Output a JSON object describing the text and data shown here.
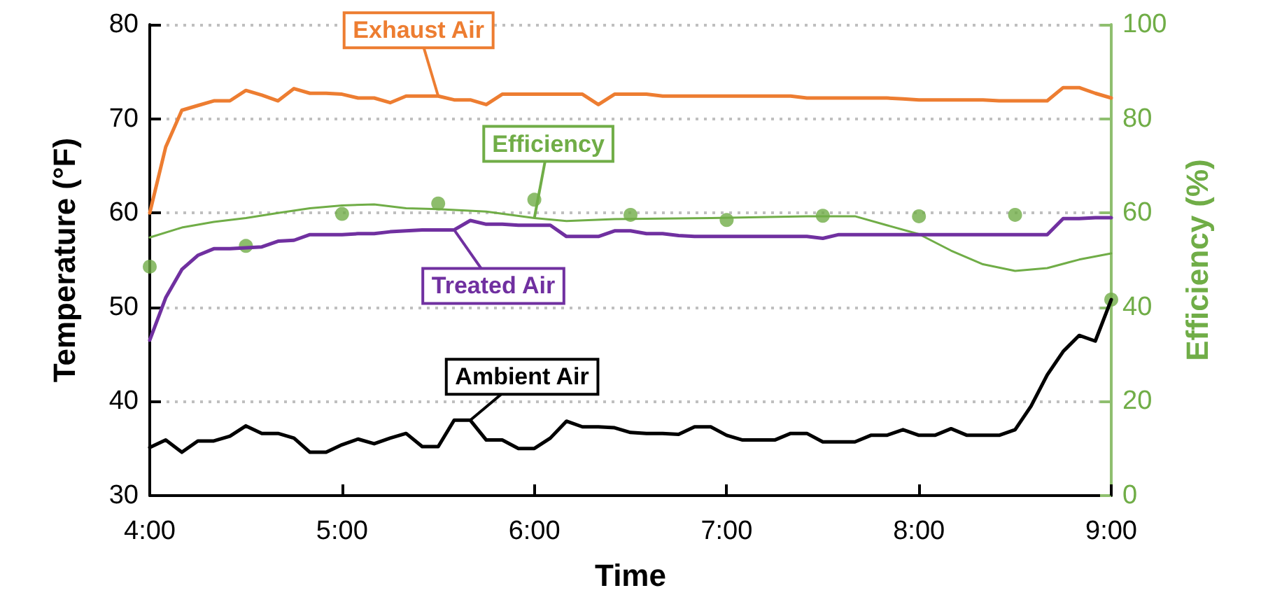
{
  "chart_data": {
    "type": "line",
    "xlabel": "Time",
    "ylabel": "Temperature (°F)",
    "y2label": "Efficiency (%)",
    "x": [
      4,
      4.083,
      4.167,
      4.25,
      4.333,
      4.417,
      4.5,
      4.583,
      4.667,
      4.75,
      4.833,
      4.917,
      5,
      5.083,
      5.167,
      5.25,
      5.333,
      5.417,
      5.5,
      5.583,
      5.667,
      5.75,
      5.833,
      5.917,
      6,
      6.083,
      6.167,
      6.25,
      6.333,
      6.417,
      6.5,
      6.583,
      6.667,
      6.75,
      6.833,
      6.917,
      7,
      7.083,
      7.167,
      7.25,
      7.333,
      7.417,
      7.5,
      7.583,
      7.667,
      7.75,
      7.833,
      7.917,
      8,
      8.083,
      8.167,
      8.25,
      8.333,
      8.417,
      8.5,
      8.583,
      8.667,
      8.75,
      8.833,
      8.917,
      9
    ],
    "series": [
      {
        "name": "Exhaust Air",
        "color": "#ed7d31",
        "values": [
          60.0,
          67.0,
          70.9,
          71.4,
          71.9,
          71.9,
          73.0,
          72.5,
          71.9,
          73.2,
          72.7,
          72.7,
          72.6,
          72.2,
          72.2,
          71.7,
          72.4,
          72.4,
          72.4,
          72.0,
          72.0,
          71.5,
          72.6,
          72.6,
          72.6,
          72.6,
          72.6,
          72.6,
          71.5,
          72.6,
          72.6,
          72.6,
          72.4,
          72.4,
          72.4,
          72.4,
          72.4,
          72.4,
          72.4,
          72.4,
          72.4,
          72.2,
          72.2,
          72.2,
          72.2,
          72.2,
          72.2,
          72.1,
          72.0,
          72.0,
          72.0,
          72.0,
          72.0,
          71.9,
          71.9,
          71.9,
          71.9,
          73.3,
          73.3,
          72.7,
          72.2
        ]
      },
      {
        "name": "Efficiency",
        "color": "#70ad47",
        "axis": "y2",
        "x": [
          4,
          4.167,
          4.333,
          4.5,
          4.667,
          4.833,
          5,
          5.167,
          5.333,
          5.5,
          5.75,
          6,
          6.167,
          6.417,
          6.917,
          7.417,
          7.667,
          7.833,
          8,
          8.167,
          8.333,
          8.5,
          8.667,
          8.833,
          9
        ],
        "values": [
          54.8,
          56.9,
          58.1,
          58.9,
          60.0,
          61.0,
          61.6,
          61.8,
          61.0,
          60.8,
          60.3,
          58.9,
          58.3,
          58.7,
          58.9,
          59.3,
          59.3,
          57.4,
          55.5,
          52.0,
          49.1,
          47.7,
          48.3,
          50.1,
          51.4
        ]
      },
      {
        "type": "scatter",
        "marker": "circle",
        "color": "#70ad47",
        "axis": "y2",
        "x": [
          4,
          4.5,
          5,
          5.5,
          6,
          6.5,
          7,
          7.5,
          8,
          8.5,
          9
        ],
        "values": [
          48.6,
          53.0,
          59.8,
          62.0,
          62.8,
          59.6,
          58.5,
          59.4,
          59.3,
          59.6,
          41.6
        ]
      },
      {
        "name": "Treated Air",
        "color": "#7030a0",
        "values": [
          46.5,
          51.0,
          54.0,
          55.5,
          56.2,
          56.2,
          56.3,
          56.4,
          57.0,
          57.1,
          57.7,
          57.7,
          57.7,
          57.8,
          57.8,
          58.0,
          58.1,
          58.2,
          58.2,
          58.2,
          59.2,
          58.8,
          58.8,
          58.7,
          58.7,
          58.7,
          57.5,
          57.5,
          57.5,
          58.1,
          58.1,
          57.8,
          57.8,
          57.6,
          57.5,
          57.5,
          57.5,
          57.5,
          57.5,
          57.5,
          57.5,
          57.5,
          57.3,
          57.7,
          57.7,
          57.7,
          57.7,
          57.7,
          57.7,
          57.7,
          57.7,
          57.7,
          57.7,
          57.7,
          57.7,
          57.7,
          57.7,
          59.4,
          59.4,
          59.5,
          59.5
        ]
      },
      {
        "name": "Ambient Air",
        "color": "#000000",
        "values": [
          35.1,
          35.9,
          34.6,
          35.8,
          35.8,
          36.3,
          37.4,
          36.6,
          36.6,
          36.1,
          34.6,
          34.6,
          35.4,
          36.0,
          35.5,
          36.1,
          36.6,
          35.2,
          35.2,
          38.0,
          38.0,
          35.9,
          35.9,
          35.0,
          35.0,
          36.1,
          37.9,
          37.3,
          37.3,
          37.2,
          36.7,
          36.6,
          36.6,
          36.5,
          37.3,
          37.3,
          36.4,
          35.9,
          35.9,
          35.9,
          36.6,
          36.6,
          35.7,
          35.7,
          35.7,
          36.4,
          36.4,
          37.0,
          36.4,
          36.4,
          37.1,
          36.4,
          36.4,
          36.4,
          37.0,
          39.5,
          42.8,
          45.3,
          47.0,
          46.4,
          50.8
        ]
      }
    ],
    "xlim": [
      4,
      9
    ],
    "xticks": [
      {
        "value": 4,
        "label": "4:00"
      },
      {
        "value": 5,
        "label": "5:00"
      },
      {
        "value": 6,
        "label": "6:00"
      },
      {
        "value": 7,
        "label": "7:00"
      },
      {
        "value": 8,
        "label": "8:00"
      },
      {
        "value": 9,
        "label": "9:00"
      }
    ],
    "ylim": [
      30,
      80
    ],
    "yticks": [
      30,
      40,
      50,
      60,
      70,
      80
    ],
    "y2lim": [
      0,
      100
    ],
    "y2ticks": [
      0,
      20,
      40,
      60,
      80,
      100
    ],
    "grid": "y",
    "marker": "none"
  }
}
